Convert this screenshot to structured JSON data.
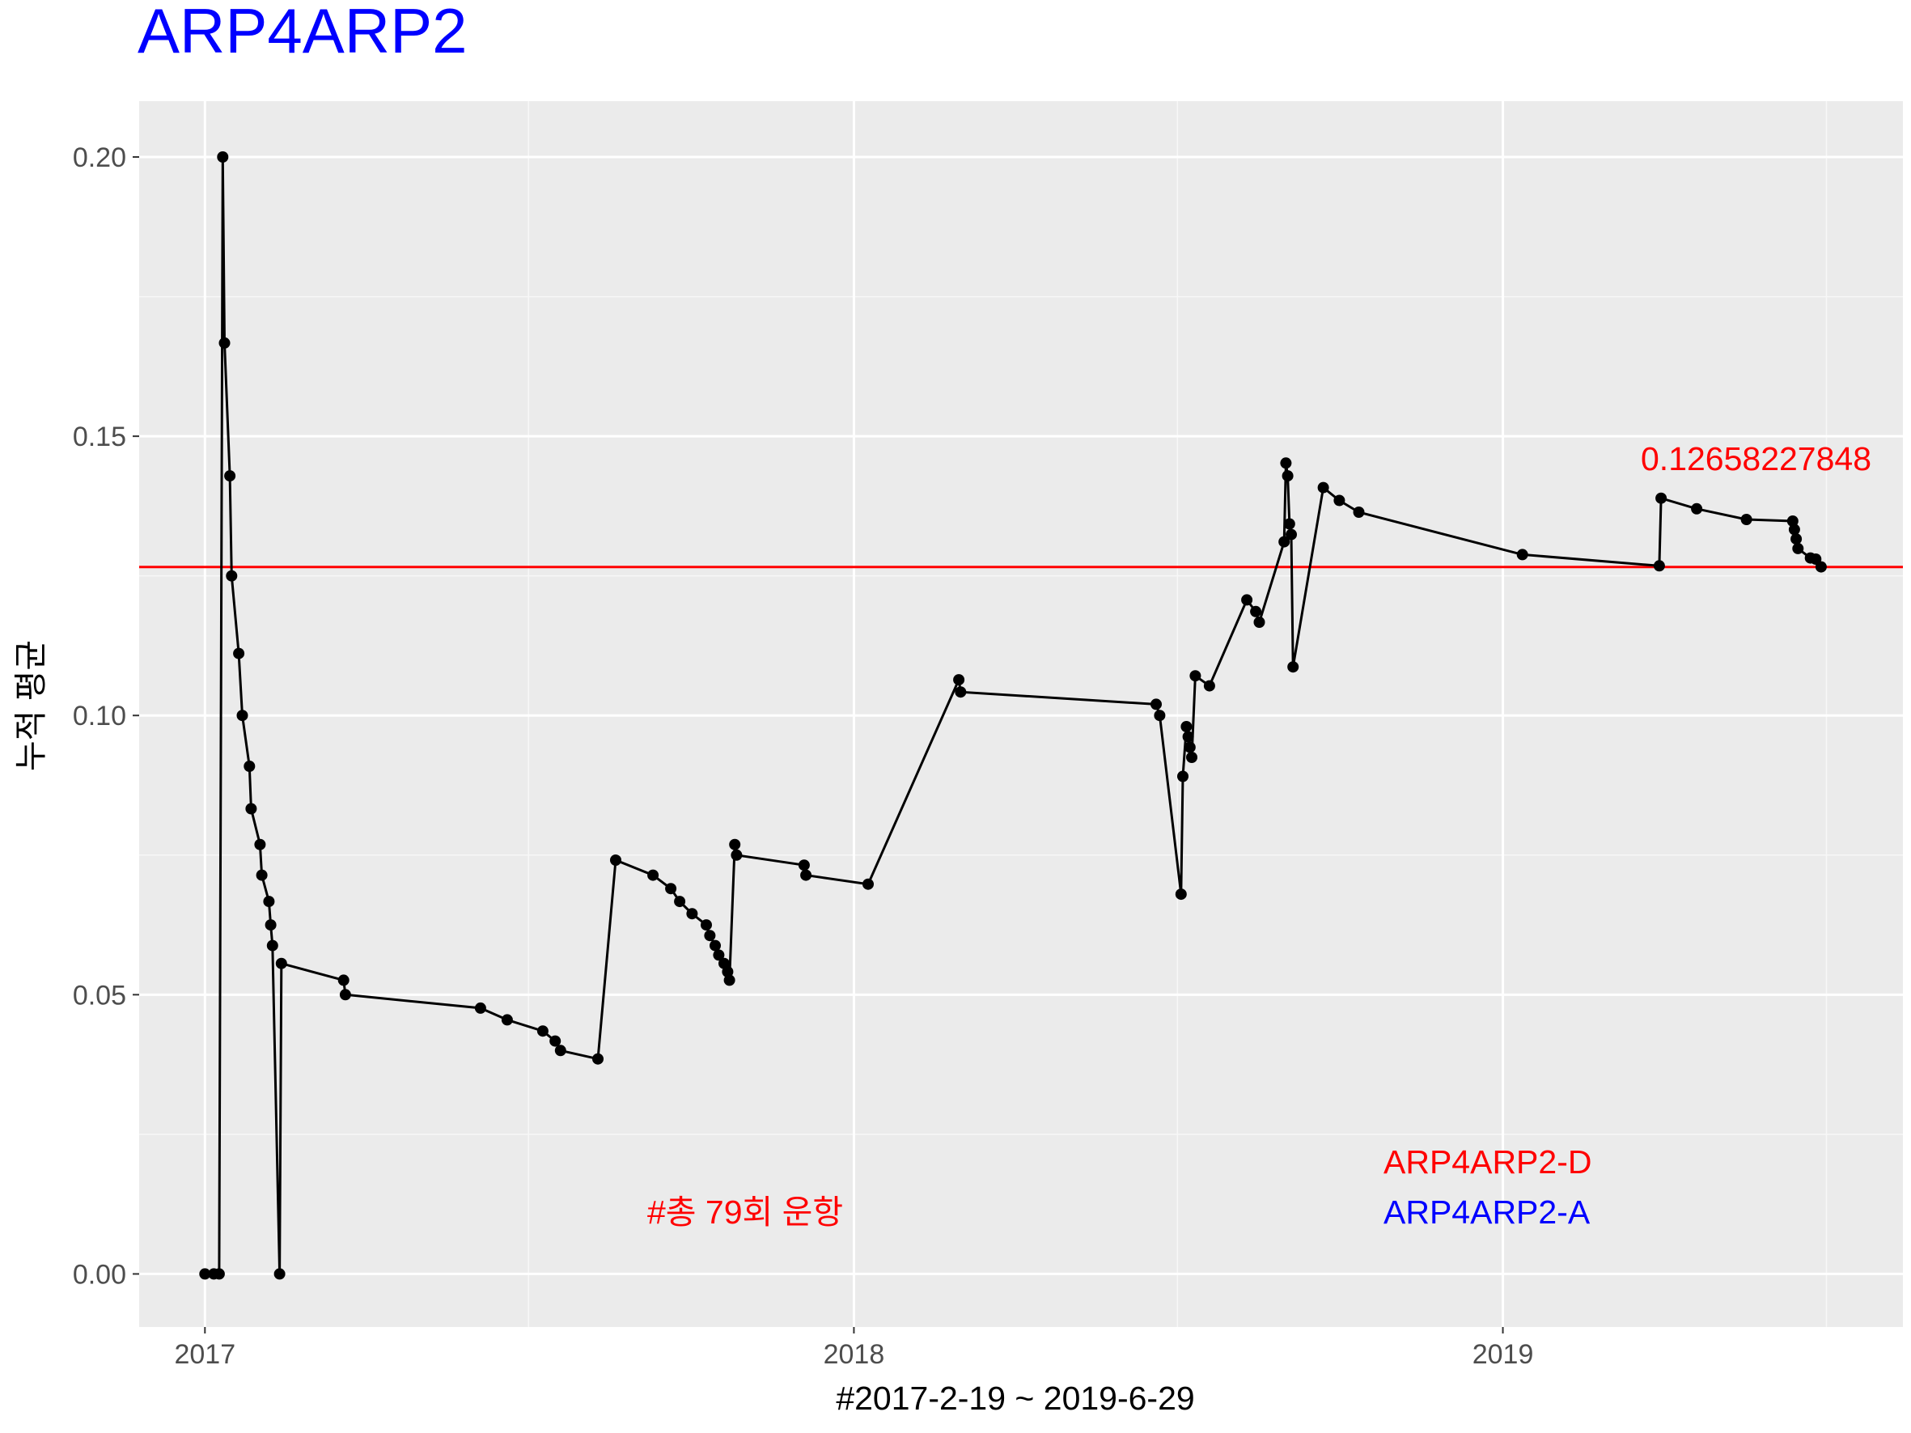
{
  "chart_data": {
    "type": "line",
    "title": "ARP4ARP2",
    "xlabel": "#2017-2-19 ~ 2019-6-29",
    "ylabel": "누적 평균",
    "x_ticks": [
      "2017",
      "2018",
      "2019"
    ],
    "y_ticks": [
      "0.00",
      "0.05",
      "0.10",
      "0.15",
      "0.20"
    ],
    "xlim": [
      "2016-11-25",
      "2019-08-14"
    ],
    "ylim": [
      -0.0095,
      0.21
    ],
    "grid": true,
    "line_color": "#000000",
    "point_color": "#000000",
    "hline": {
      "value": 0.1265822785,
      "color": "#ff0000",
      "label": "0.12658227848"
    },
    "annotations": [
      {
        "text": "#총 79회 운항",
        "color": "#ff0000"
      },
      {
        "text": "ARP4ARP2-D",
        "color": "#ff0000"
      },
      {
        "text": "ARP4ARP2-A",
        "color": "#0000ff"
      }
    ],
    "series": [
      {
        "x": [
          "2017-01-01",
          "2017-01-06",
          "2017-01-09",
          "2017-01-11",
          "2017-01-12",
          "2017-01-15",
          "2017-01-16",
          "2017-01-20",
          "2017-01-22",
          "2017-01-26",
          "2017-01-27",
          "2017-02-01",
          "2017-02-02",
          "2017-02-06",
          "2017-02-07",
          "2017-02-08",
          "2017-02-12",
          "2017-02-13",
          "2017-03-20",
          "2017-03-21",
          "2017-06-05",
          "2017-06-20",
          "2017-07-10",
          "2017-07-17",
          "2017-07-20",
          "2017-08-10",
          "2017-08-20",
          "2017-09-10",
          "2017-09-20",
          "2017-09-25",
          "2017-10-02",
          "2017-10-10",
          "2017-10-12",
          "2017-10-15",
          "2017-10-17",
          "2017-10-20",
          "2017-10-22",
          "2017-10-23",
          "2017-10-26",
          "2017-10-27",
          "2017-12-04",
          "2017-12-05",
          "2018-01-09",
          "2018-03-01",
          "2018-03-02",
          "2018-06-20",
          "2018-06-22",
          "2018-07-04",
          "2018-07-05",
          "2018-07-07",
          "2018-07-08",
          "2018-07-09",
          "2018-07-10",
          "2018-07-12",
          "2018-07-20",
          "2018-08-10",
          "2018-08-15",
          "2018-08-17",
          "2018-08-31",
          "2018-09-01",
          "2018-09-02",
          "2018-09-03",
          "2018-09-04",
          "2018-09-05",
          "2018-09-22",
          "2018-10-01",
          "2018-10-12",
          "2019-01-12",
          "2019-03-30",
          "2019-03-31",
          "2019-04-20",
          "2019-05-18",
          "2019-06-13",
          "2019-06-14",
          "2019-06-15",
          "2019-06-16",
          "2019-06-23",
          "2019-06-26",
          "2019-06-29"
        ],
        "y": [
          0,
          0,
          0,
          0.2,
          0.1667,
          0.1429,
          0.125,
          0.1111,
          0.1,
          0.0909,
          0.0833,
          0.0769,
          0.0714,
          0.0667,
          0.0625,
          0.0588,
          0,
          0.0556,
          0.0526,
          0.05,
          0.0476,
          0.0455,
          0.0435,
          0.0417,
          0.04,
          0.0385,
          0.0741,
          0.0714,
          0.069,
          0.0667,
          0.0645,
          0.0625,
          0.0606,
          0.0588,
          0.0571,
          0.0556,
          0.0541,
          0.0526,
          0.0769,
          0.075,
          0.0732,
          0.0714,
          0.0698,
          0.1064,
          0.1042,
          0.102,
          0.1,
          0.068,
          0.0891,
          0.098,
          0.0962,
          0.0943,
          0.0925,
          0.1071,
          0.1053,
          0.1207,
          0.1186,
          0.1167,
          0.1311,
          0.1452,
          0.1429,
          0.1343,
          0.1324,
          0.1087,
          0.1408,
          0.1385,
          0.1364,
          0.1288,
          0.1268,
          0.1389,
          0.137,
          0.1351,
          0.1348,
          0.1333,
          0.1316,
          0.1299,
          0.1282,
          0.128,
          0.1266
        ]
      }
    ]
  }
}
